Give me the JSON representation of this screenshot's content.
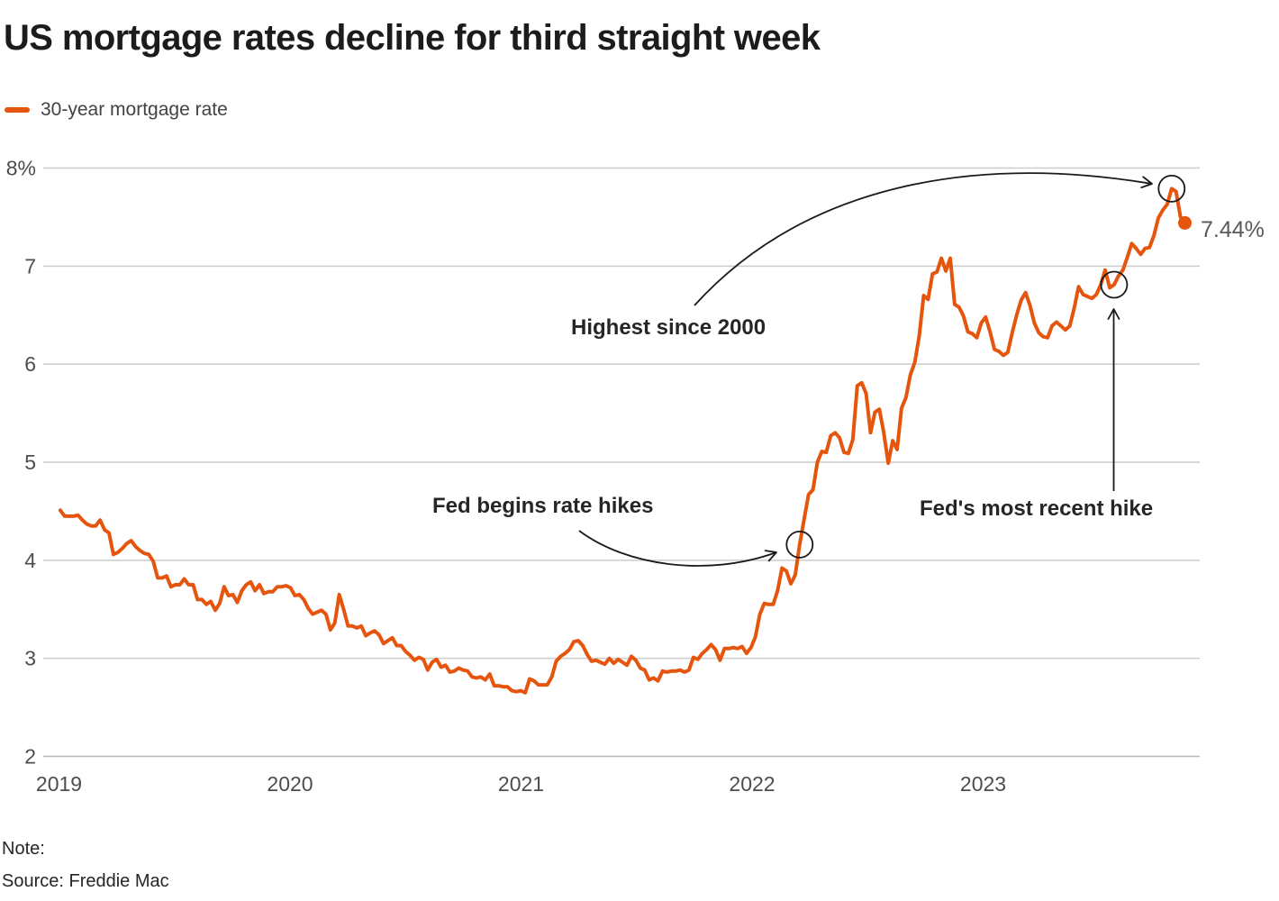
{
  "title": "US mortgage rates decline for third straight week",
  "legend": {
    "label": "30-year mortgage rate",
    "color": "#e6550d"
  },
  "callouts": [
    {
      "id": "fed-begins",
      "label": "Fed begins rate hikes",
      "point_index": 167
    },
    {
      "id": "fed-recent",
      "label": "Fed's most recent hike",
      "point_index": 238
    },
    {
      "id": "highest",
      "label": "Highest since 2000",
      "point_index": 251
    }
  ],
  "end_label": {
    "text": "7.44%",
    "point_index": 254
  },
  "footer": {
    "note": "Note:",
    "source": "Source: Freddie Mac"
  },
  "colors": {
    "line": "#e6550d",
    "grid": "#cccccc",
    "baseline": "#b8b8b8",
    "axis_text": "#4d4d4d",
    "annotation": "#1a1a1a"
  },
  "chart_data": {
    "type": "line",
    "title": "US mortgage rates decline for third straight week",
    "xlabel": "",
    "ylabel": "30-year mortgage rate (%)",
    "ylim": [
      2,
      8
    ],
    "grid": "horizontal",
    "legend_position": "top-left",
    "y_ticks": [
      8,
      7,
      6,
      5,
      4,
      3,
      2
    ],
    "y_tick_labels": [
      "8%",
      "7",
      "6",
      "5",
      "4",
      "3",
      "2"
    ],
    "x_ticks": [
      2019,
      2020,
      2021,
      2022,
      2023
    ],
    "x_tick_labels": [
      "2019",
      "2020",
      "2021",
      "2022",
      "2023"
    ],
    "frequency": "weekly",
    "x_start_year": 2019,
    "series": [
      {
        "name": "30-year mortgage rate",
        "color": "#e6550d",
        "values": [
          4.51,
          4.45,
          4.45,
          4.45,
          4.46,
          4.41,
          4.37,
          4.35,
          4.35,
          4.41,
          4.31,
          4.28,
          4.06,
          4.08,
          4.12,
          4.17,
          4.2,
          4.14,
          4.1,
          4.07,
          4.06,
          3.99,
          3.82,
          3.82,
          3.84,
          3.73,
          3.75,
          3.75,
          3.81,
          3.75,
          3.75,
          3.6,
          3.6,
          3.55,
          3.58,
          3.49,
          3.56,
          3.73,
          3.64,
          3.65,
          3.57,
          3.69,
          3.75,
          3.78,
          3.69,
          3.75,
          3.66,
          3.68,
          3.68,
          3.73,
          3.73,
          3.74,
          3.72,
          3.64,
          3.65,
          3.6,
          3.51,
          3.45,
          3.47,
          3.49,
          3.45,
          3.29,
          3.36,
          3.65,
          3.5,
          3.33,
          3.33,
          3.31,
          3.33,
          3.23,
          3.26,
          3.28,
          3.24,
          3.15,
          3.18,
          3.21,
          3.13,
          3.13,
          3.07,
          3.03,
          2.98,
          3.01,
          2.99,
          2.88,
          2.96,
          2.99,
          2.91,
          2.93,
          2.86,
          2.87,
          2.9,
          2.88,
          2.87,
          2.81,
          2.8,
          2.81,
          2.78,
          2.84,
          2.72,
          2.72,
          2.71,
          2.71,
          2.67,
          2.66,
          2.67,
          2.65,
          2.79,
          2.77,
          2.73,
          2.73,
          2.73,
          2.81,
          2.97,
          3.02,
          3.05,
          3.09,
          3.17,
          3.18,
          3.13,
          3.04,
          2.97,
          2.98,
          2.96,
          2.94,
          3.0,
          2.95,
          2.99,
          2.96,
          2.93,
          3.02,
          2.98,
          2.9,
          2.88,
          2.78,
          2.8,
          2.77,
          2.87,
          2.86,
          2.87,
          2.87,
          2.88,
          2.86,
          2.88,
          3.01,
          2.99,
          3.05,
          3.09,
          3.14,
          3.09,
          2.98,
          3.1,
          3.1,
          3.11,
          3.1,
          3.12,
          3.05,
          3.11,
          3.22,
          3.45,
          3.56,
          3.55,
          3.55,
          3.69,
          3.92,
          3.89,
          3.76,
          3.85,
          4.16,
          4.42,
          4.67,
          4.72,
          5.0,
          5.11,
          5.1,
          5.27,
          5.3,
          5.25,
          5.1,
          5.09,
          5.23,
          5.78,
          5.81,
          5.7,
          5.3,
          5.51,
          5.54,
          5.3,
          4.99,
          5.22,
          5.13,
          5.55,
          5.66,
          5.89,
          6.02,
          6.29,
          6.7,
          6.66,
          6.92,
          6.94,
          7.08,
          6.95,
          7.08,
          6.61,
          6.58,
          6.49,
          6.33,
          6.31,
          6.27,
          6.42,
          6.48,
          6.33,
          6.15,
          6.13,
          6.09,
          6.12,
          6.32,
          6.5,
          6.65,
          6.73,
          6.6,
          6.42,
          6.32,
          6.28,
          6.27,
          6.39,
          6.43,
          6.39,
          6.35,
          6.39,
          6.57,
          6.79,
          6.71,
          6.69,
          6.67,
          6.71,
          6.81,
          6.96,
          6.78,
          6.81,
          6.9,
          6.96,
          7.09,
          7.23,
          7.18,
          7.12,
          7.18,
          7.19,
          7.31,
          7.49,
          7.57,
          7.63,
          7.79,
          7.76,
          7.5,
          7.44
        ]
      }
    ]
  }
}
